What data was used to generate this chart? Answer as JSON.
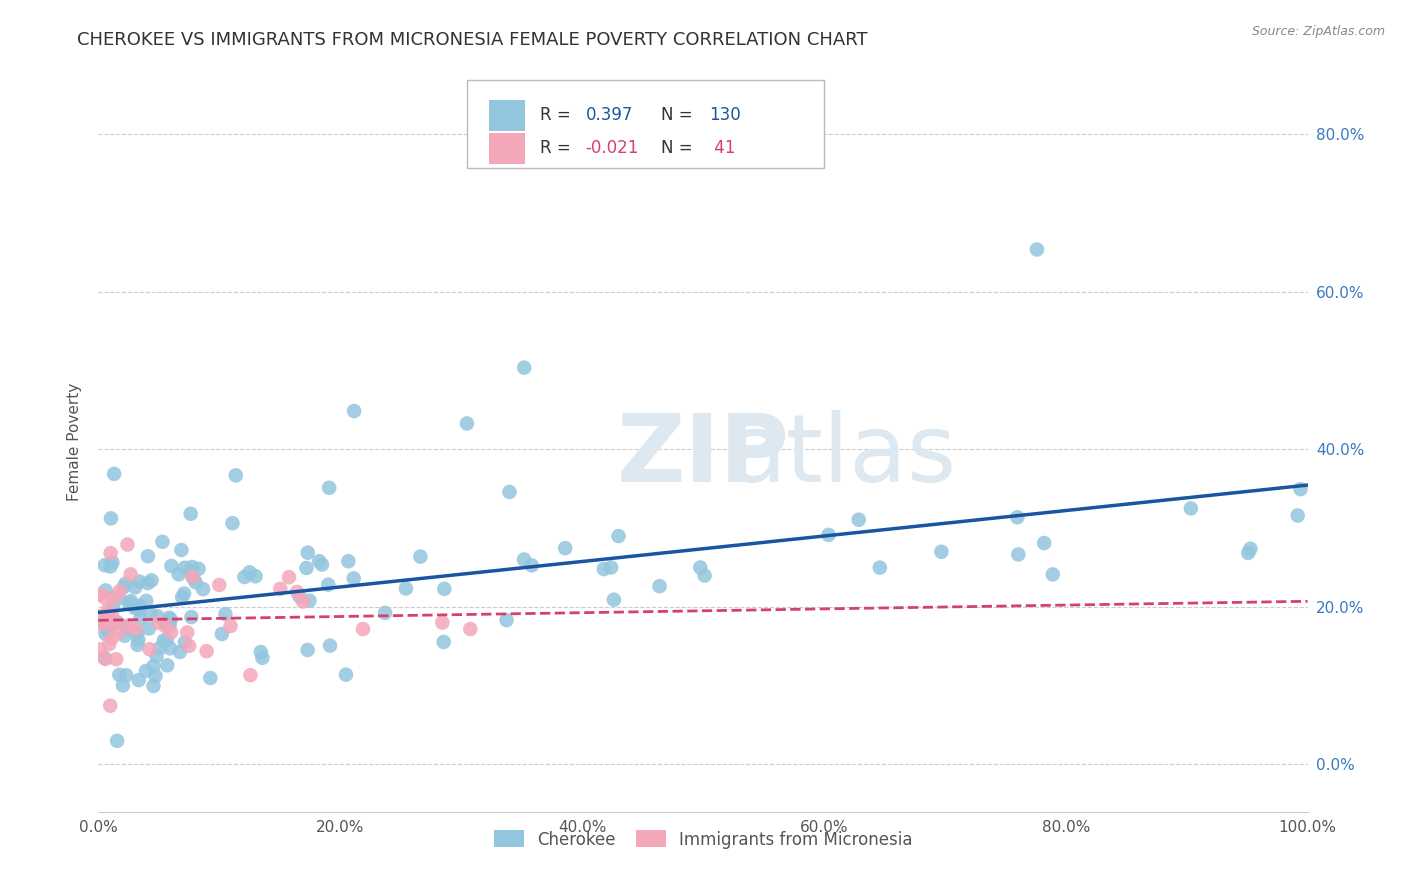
{
  "title": "CHEROKEE VS IMMIGRANTS FROM MICRONESIA FEMALE POVERTY CORRELATION CHART",
  "source": "Source: ZipAtlas.com",
  "ylabel": "Female Poverty",
  "legend1_label": "Cherokee",
  "legend2_label": "Immigrants from Micronesia",
  "r1": 0.397,
  "n1": 130,
  "r2": -0.021,
  "n2": 41,
  "color_blue": "#92c5de",
  "color_pink": "#f4a7b9",
  "color_trendline1": "#1a56a0",
  "color_trendline2": "#d44070",
  "watermark_color": "#dde8f0",
  "grid_color": "#cccccc",
  "title_color": "#333333",
  "tick_color": "#555555",
  "right_tick_color": "#3a7abf",
  "source_color": "#888888",
  "xlim": [
    0.0,
    1.0
  ],
  "ylim": [
    -0.06,
    0.88
  ],
  "xticks": [
    0.0,
    0.2,
    0.4,
    0.6,
    0.8,
    1.0
  ],
  "yticks": [
    0.0,
    0.2,
    0.4,
    0.6,
    0.8
  ],
  "xtick_labels": [
    "0.0%",
    "20.0%",
    "40.0%",
    "60.0%",
    "80.0%",
    "100.0%"
  ],
  "ytick_labels": [
    "0.0%",
    "20.0%",
    "40.0%",
    "60.0%",
    "80.0%"
  ]
}
